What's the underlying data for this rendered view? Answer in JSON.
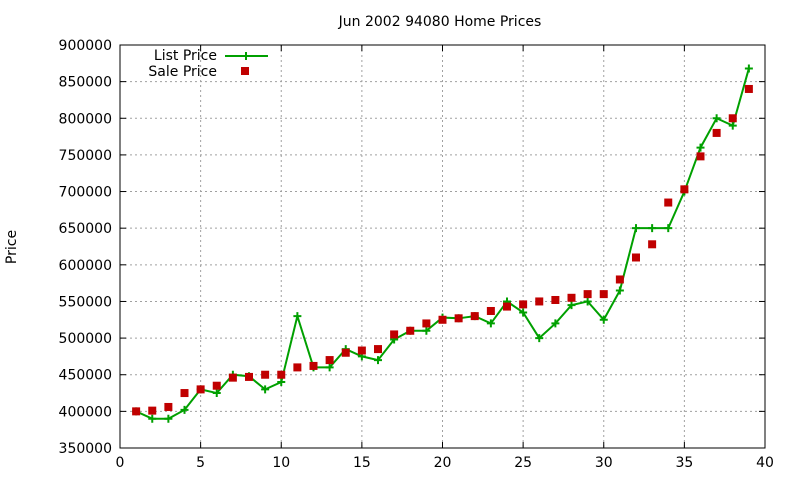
{
  "chart_data": {
    "type": "line",
    "title": "Jun 2002 94080 Home Prices",
    "xlabel": "",
    "ylabel": "Price",
    "xlim": [
      0,
      40
    ],
    "ylim": [
      350000,
      900000
    ],
    "x_ticks": [
      0,
      5,
      10,
      15,
      20,
      25,
      30,
      35,
      40
    ],
    "y_ticks": [
      350000,
      400000,
      450000,
      500000,
      550000,
      600000,
      650000,
      700000,
      750000,
      800000,
      850000,
      900000
    ],
    "grid": true,
    "legend_position": "top-left",
    "series": [
      {
        "name": "List Price",
        "style": "line with plus markers",
        "color": "#00a000",
        "x": [
          1,
          2,
          3,
          4,
          5,
          6,
          7,
          8,
          9,
          10,
          11,
          12,
          13,
          14,
          15,
          16,
          17,
          18,
          19,
          20,
          21,
          22,
          23,
          24,
          25,
          26,
          27,
          28,
          29,
          30,
          31,
          32,
          33,
          34,
          35,
          36,
          37,
          38,
          39
        ],
        "values": [
          400000,
          390000,
          390000,
          402000,
          430000,
          425000,
          450000,
          448000,
          430000,
          440000,
          530000,
          460000,
          460000,
          485000,
          475000,
          470000,
          498000,
          510000,
          510000,
          528000,
          527000,
          530000,
          520000,
          550000,
          535000,
          500000,
          520000,
          545000,
          550000,
          525000,
          565000,
          650000,
          650000,
          650000,
          700000,
          760000,
          800000,
          790000,
          868000
        ]
      },
      {
        "name": "Sale Price",
        "style": "square markers",
        "color": "#c00000",
        "x": [
          1,
          2,
          3,
          4,
          5,
          6,
          7,
          8,
          9,
          10,
          11,
          12,
          13,
          14,
          15,
          16,
          17,
          18,
          19,
          20,
          21,
          22,
          23,
          24,
          25,
          26,
          27,
          28,
          29,
          30,
          31,
          32,
          33,
          34,
          35,
          36,
          37,
          38,
          39
        ],
        "values": [
          400000,
          401000,
          406000,
          425000,
          430000,
          435000,
          446000,
          447000,
          450000,
          450000,
          460000,
          462000,
          470000,
          480000,
          483000,
          485000,
          505000,
          510000,
          520000,
          525000,
          527000,
          530000,
          537000,
          543000,
          546000,
          550000,
          552000,
          555000,
          560000,
          560000,
          580000,
          610000,
          628000,
          685000,
          703000,
          748000,
          780000,
          800000,
          840000
        ]
      }
    ]
  },
  "colors": {
    "list_price": "#00a000",
    "sale_price": "#c00000",
    "grid": "#a0a0a0",
    "axis": "#000000"
  }
}
